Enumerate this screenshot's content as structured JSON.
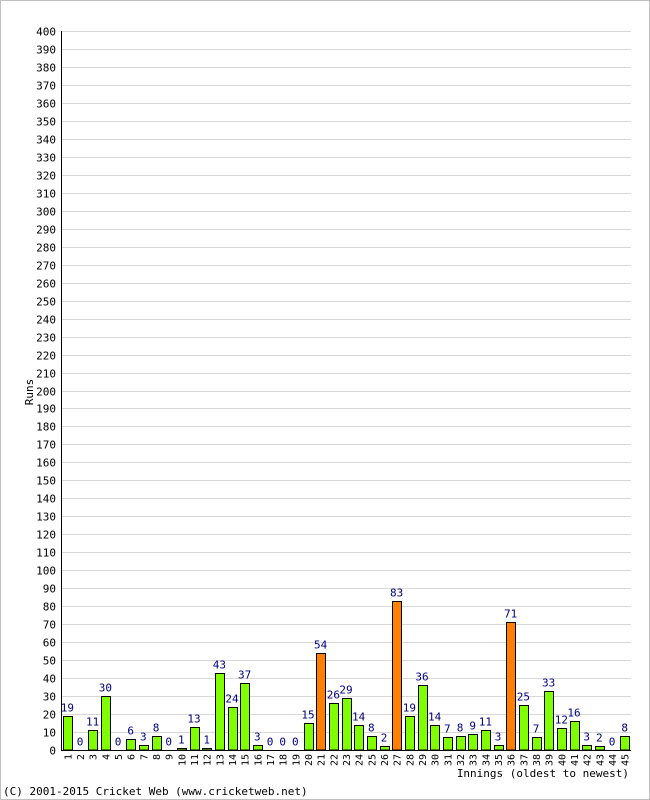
{
  "chart_data": {
    "type": "bar",
    "title": "",
    "xlabel": "Innings (oldest to newest)",
    "ylabel": "Runs",
    "ylim": [
      0,
      400
    ],
    "y_tick_step": 10,
    "grid": true,
    "categories": [
      "1",
      "2",
      "3",
      "4",
      "5",
      "6",
      "7",
      "8",
      "9",
      "10",
      "11",
      "12",
      "13",
      "14",
      "15",
      "16",
      "17",
      "18",
      "19",
      "20",
      "21",
      "22",
      "23",
      "24",
      "25",
      "26",
      "27",
      "28",
      "29",
      "30",
      "31",
      "32",
      "33",
      "34",
      "35",
      "36",
      "37",
      "38",
      "39",
      "40",
      "41",
      "42",
      "43",
      "44",
      "45"
    ],
    "values": [
      19,
      0,
      11,
      30,
      0,
      6,
      3,
      8,
      0,
      1,
      13,
      1,
      43,
      24,
      37,
      3,
      0,
      0,
      0,
      15,
      54,
      26,
      29,
      14,
      8,
      2,
      83,
      19,
      36,
      14,
      7,
      8,
      9,
      11,
      3,
      71,
      25,
      7,
      33,
      12,
      16,
      3,
      2,
      0,
      8
    ],
    "highlighted_threshold": 50,
    "colors": {
      "normal_fill": "#80ff00",
      "highlight_fill": "#ff8000",
      "bar_stroke": "#000000",
      "value_label": "#000080",
      "grid": "#d8d8d8"
    }
  },
  "footer": {
    "copyright": "(C) 2001-2015 Cricket Web (www.cricketweb.net)"
  }
}
